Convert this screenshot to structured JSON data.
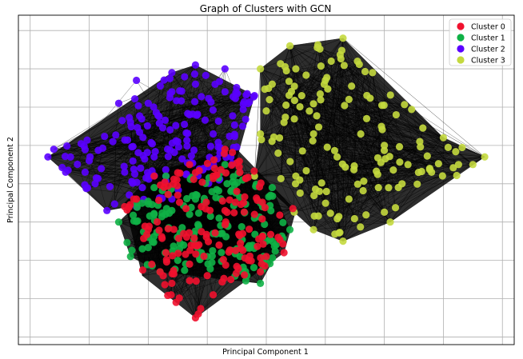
{
  "chart_data": {
    "type": "scatter",
    "title": "Graph of Clusters with GCN",
    "xlabel": "Principal Component 1",
    "ylabel": "Principal Component 2",
    "xlim": [
      -3.2,
      5.2
    ],
    "ylim": [
      -3.2,
      5.4
    ],
    "grid": true,
    "show_tick_labels": false,
    "legend_position": "top-right",
    "edges_shown": true,
    "edge_color": "#000000",
    "series": [
      {
        "name": "Cluster 0",
        "color": "#f0112e",
        "hull": [
          [
            -0.2,
            -2.5
          ],
          [
            1.3,
            -0.8
          ],
          [
            1.5,
            0.3
          ],
          [
            0.5,
            1.9
          ],
          [
            -0.9,
            1.3
          ],
          [
            -1.4,
            0.5
          ],
          [
            -1.1,
            -1.4
          ]
        ],
        "points": [
          [
            -0.2,
            -2.5
          ],
          [
            0.1,
            -1.9
          ],
          [
            -0.6,
            -1.6
          ],
          [
            0.4,
            -1.5
          ],
          [
            0.9,
            -1.3
          ],
          [
            1.3,
            -0.8
          ],
          [
            1.2,
            -0.4
          ],
          [
            0.8,
            0.2
          ],
          [
            0.5,
            0.8
          ],
          [
            0.1,
            1.2
          ],
          [
            -0.3,
            1.5
          ],
          [
            0.3,
            1.9
          ],
          [
            -0.9,
            1.2
          ],
          [
            -1.2,
            0.6
          ],
          [
            -1.4,
            0.4
          ],
          [
            -1.0,
            -0.2
          ],
          [
            -0.7,
            -0.8
          ],
          [
            -0.3,
            -1.1
          ],
          [
            0.2,
            -0.6
          ],
          [
            0.6,
            -0.3
          ],
          [
            -0.1,
            0.4
          ],
          [
            -0.5,
            0.7
          ],
          [
            0.3,
            0.3
          ],
          [
            -0.8,
            -1.3
          ],
          [
            1.0,
            -0.9
          ],
          [
            0.7,
            -1.0
          ],
          [
            -0.4,
            -0.3
          ],
          [
            0.0,
            -1.4
          ]
        ]
      },
      {
        "name": "Cluster 1",
        "color": "#0fb146",
        "hull": [
          [
            -0.8,
            -1.3
          ],
          [
            0.9,
            -1.6
          ],
          [
            1.4,
            -0.2
          ],
          [
            1.1,
            0.9
          ],
          [
            0.3,
            1.5
          ],
          [
            -0.9,
            0.9
          ],
          [
            -1.5,
            0.0
          ],
          [
            -1.3,
            -0.9
          ]
        ],
        "points": [
          [
            -0.8,
            -1.3
          ],
          [
            0.9,
            -1.6
          ],
          [
            1.4,
            -0.2
          ],
          [
            1.1,
            0.9
          ],
          [
            0.3,
            1.5
          ],
          [
            -0.9,
            0.9
          ],
          [
            -1.5,
            0.0
          ],
          [
            -1.3,
            -0.9
          ],
          [
            -1.0,
            -0.4
          ],
          [
            -0.6,
            0.3
          ],
          [
            -0.2,
            0.6
          ],
          [
            0.4,
            0.8
          ],
          [
            0.8,
            0.1
          ],
          [
            0.5,
            -0.7
          ],
          [
            0.0,
            -0.9
          ],
          [
            -0.4,
            -0.6
          ],
          [
            -0.9,
            0.2
          ],
          [
            0.2,
            0.1
          ],
          [
            -0.5,
            -1.0
          ],
          [
            0.6,
            1.1
          ],
          [
            1.0,
            -0.5
          ],
          [
            -1.2,
            0.5
          ],
          [
            -0.7,
            1.2
          ],
          [
            0.1,
            -0.3
          ],
          [
            -0.3,
            0.2
          ],
          [
            0.6,
            -1.3
          ],
          [
            -1.1,
            -0.7
          ],
          [
            0.9,
            0.5
          ]
        ]
      },
      {
        "name": "Cluster 2",
        "color": "#5a00ff",
        "hull": [
          [
            -2.7,
            1.7
          ],
          [
            -0.6,
            3.9
          ],
          [
            -0.2,
            4.1
          ],
          [
            0.8,
            3.3
          ],
          [
            0.4,
            1.1
          ],
          [
            -0.6,
            0.6
          ],
          [
            -1.7,
            0.3
          ],
          [
            -2.4,
            1.3
          ]
        ],
        "points": [
          [
            -2.7,
            1.7
          ],
          [
            -2.6,
            1.9
          ],
          [
            -1.2,
            3.7
          ],
          [
            -0.6,
            3.9
          ],
          [
            -0.2,
            4.1
          ],
          [
            0.3,
            4.0
          ],
          [
            0.8,
            3.3
          ],
          [
            0.6,
            2.5
          ],
          [
            0.4,
            1.7
          ],
          [
            0.2,
            1.1
          ],
          [
            -0.6,
            0.6
          ],
          [
            -1.2,
            0.4
          ],
          [
            -1.7,
            0.3
          ],
          [
            -2.4,
            1.3
          ],
          [
            -2.0,
            1.6
          ],
          [
            -1.6,
            2.1
          ],
          [
            -1.3,
            2.6
          ],
          [
            -1.0,
            3.1
          ],
          [
            -0.6,
            3.4
          ],
          [
            -0.3,
            2.8
          ],
          [
            0.1,
            2.3
          ],
          [
            -0.5,
            2.1
          ],
          [
            -0.9,
            1.7
          ],
          [
            -1.4,
            1.3
          ],
          [
            -1.9,
            1.0
          ],
          [
            -0.7,
            1.2
          ],
          [
            -1.1,
            0.9
          ],
          [
            0.3,
            3.4
          ],
          [
            -0.2,
            3.6
          ],
          [
            -1.5,
            3.1
          ]
        ]
      },
      {
        "name": "Cluster 3",
        "color": "#c4d93e",
        "hull": [
          [
            0.9,
            4.0
          ],
          [
            1.4,
            4.6
          ],
          [
            2.3,
            4.8
          ],
          [
            4.0,
            2.2
          ],
          [
            4.7,
            1.7
          ],
          [
            3.1,
            0.0
          ],
          [
            2.3,
            -0.5
          ],
          [
            1.8,
            -0.2
          ],
          [
            0.8,
            1.2
          ],
          [
            0.9,
            2.3
          ]
        ],
        "points": [
          [
            0.9,
            4.0
          ],
          [
            1.4,
            4.6
          ],
          [
            2.3,
            4.8
          ],
          [
            1.0,
            2.9
          ],
          [
            0.9,
            2.3
          ],
          [
            0.8,
            1.2
          ],
          [
            1.8,
            -0.2
          ],
          [
            2.3,
            -0.5
          ],
          [
            3.1,
            0.0
          ],
          [
            4.0,
            2.2
          ],
          [
            4.7,
            1.7
          ],
          [
            4.5,
            1.5
          ],
          [
            3.8,
            1.3
          ],
          [
            3.4,
            1.5
          ],
          [
            3.0,
            2.0
          ],
          [
            2.7,
            2.7
          ],
          [
            2.4,
            3.2
          ],
          [
            2.0,
            3.7
          ],
          [
            1.6,
            3.3
          ],
          [
            1.3,
            2.6
          ],
          [
            1.2,
            1.8
          ],
          [
            1.5,
            1.2
          ],
          [
            1.9,
            0.8
          ],
          [
            2.4,
            0.6
          ],
          [
            2.9,
            0.9
          ],
          [
            3.3,
            1.0
          ],
          [
            2.2,
            1.7
          ],
          [
            2.6,
            2.3
          ],
          [
            1.8,
            2.3
          ],
          [
            3.2,
            2.8
          ],
          [
            3.6,
            2.1
          ],
          [
            1.5,
            4.0
          ],
          [
            2.1,
            4.2
          ],
          [
            2.8,
            3.9
          ],
          [
            1.1,
            3.6
          ]
        ]
      }
    ]
  }
}
